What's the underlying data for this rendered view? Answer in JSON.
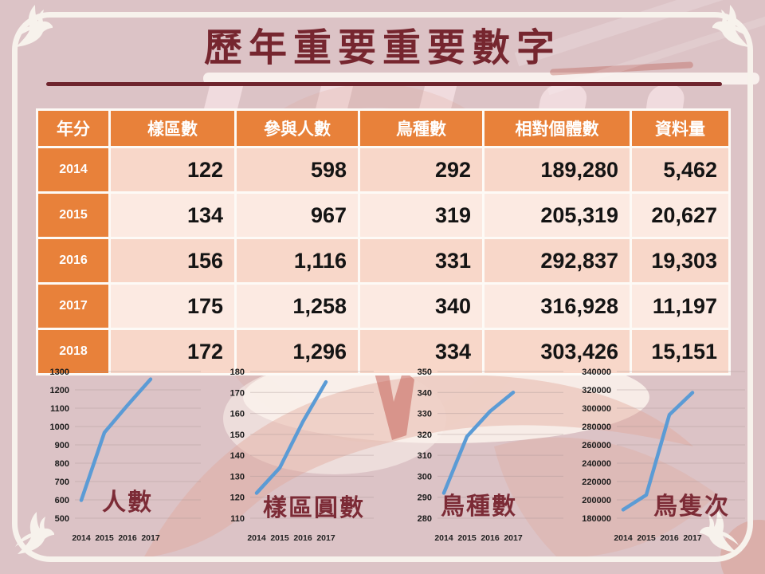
{
  "slide": {
    "title": "歷年重要重要數字"
  },
  "table": {
    "headers": [
      "年分",
      "樣區數",
      "參與人數",
      "鳥種數",
      "相對個體數",
      "資料量"
    ],
    "rows": [
      {
        "year": "2014",
        "values": [
          "122",
          "598",
          "292",
          "189,280",
          "5,462"
        ]
      },
      {
        "year": "2015",
        "values": [
          "134",
          "967",
          "319",
          "205,319",
          "20,627"
        ]
      },
      {
        "year": "2016",
        "values": [
          "156",
          "1,116",
          "331",
          "292,837",
          "19,303"
        ]
      },
      {
        "year": "2017",
        "values": [
          "175",
          "1,258",
          "340",
          "316,928",
          "11,197"
        ]
      },
      {
        "year": "2018",
        "values": [
          "172",
          "1,296",
          "334",
          "303,426",
          "15,151"
        ]
      }
    ]
  },
  "chart_data": [
    {
      "type": "line",
      "title": "人數",
      "x": [
        "2014",
        "2015",
        "2016",
        "2017"
      ],
      "values": [
        598,
        967,
        1116,
        1258
      ],
      "ylim": [
        500,
        1300
      ],
      "yticks": [
        "1300",
        "1200",
        "1100",
        "1000",
        "900",
        "800",
        "700",
        "600",
        "500"
      ],
      "grid": true,
      "legend_position": "none"
    },
    {
      "type": "line",
      "title": "樣區圓數",
      "x": [
        "2014",
        "2015",
        "2016",
        "2017"
      ],
      "values": [
        122,
        134,
        156,
        175
      ],
      "ylim": [
        110,
        180
      ],
      "yticks": [
        "180",
        "170",
        "160",
        "150",
        "140",
        "130",
        "120",
        "110"
      ],
      "grid": true,
      "legend_position": "none"
    },
    {
      "type": "line",
      "title": "鳥種數",
      "x": [
        "2014",
        "2015",
        "2016",
        "2017"
      ],
      "values": [
        292,
        319,
        331,
        340
      ],
      "ylim": [
        280,
        350
      ],
      "yticks": [
        "350",
        "340",
        "330",
        "320",
        "310",
        "300",
        "290",
        "280"
      ],
      "grid": true,
      "legend_position": "none"
    },
    {
      "type": "line",
      "title": "鳥隻次",
      "x": [
        "2014",
        "2015",
        "2016",
        "2017"
      ],
      "values": [
        189280,
        205319,
        292837,
        316928
      ],
      "ylim": [
        180000,
        340000
      ],
      "yticks": [
        "340000",
        "320000",
        "300000",
        "280000",
        "260000",
        "240000",
        "220000",
        "200000",
        "180000"
      ],
      "grid": true,
      "legend_position": "none"
    }
  ],
  "colors": {
    "background": "#dcc3c6",
    "frame_white": "#f7f2ec",
    "accent_orange": "#e8813a",
    "maroon_text": "#76262f",
    "row_light": "#fceae2",
    "row_dark": "#f8d7c9",
    "chart_line_blue": "#5b9bd5"
  }
}
